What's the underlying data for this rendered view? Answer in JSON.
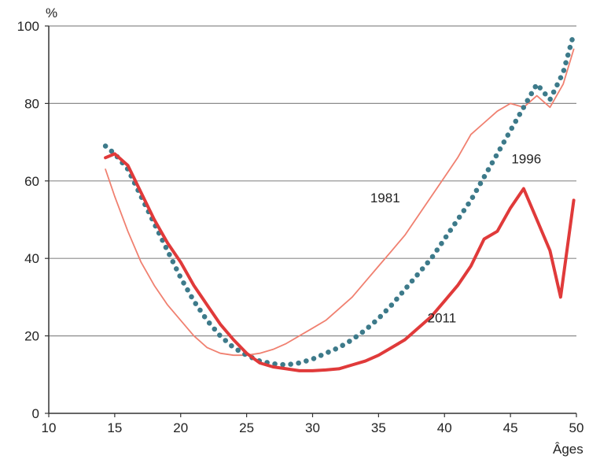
{
  "chart_data": {
    "type": "line",
    "title": "",
    "xlabel": "Âges",
    "ylabel": "%",
    "xlim": [
      10,
      50
    ],
    "ylim": [
      0,
      100
    ],
    "xticks": [
      10,
      15,
      20,
      25,
      30,
      35,
      40,
      45,
      50
    ],
    "yticks": [
      0,
      20,
      40,
      60,
      80,
      100
    ],
    "grid": "horizontal",
    "legend": "none",
    "series": [
      {
        "name": "1981",
        "color": "#f08070",
        "style": "thin",
        "points": [
          [
            14.3,
            63
          ],
          [
            15,
            56
          ],
          [
            16,
            47
          ],
          [
            17,
            39
          ],
          [
            18,
            33
          ],
          [
            19,
            28
          ],
          [
            20,
            24
          ],
          [
            21,
            20
          ],
          [
            22,
            17
          ],
          [
            23,
            15.5
          ],
          [
            24,
            15
          ],
          [
            25,
            15
          ],
          [
            26,
            15.5
          ],
          [
            27,
            16.5
          ],
          [
            28,
            18
          ],
          [
            29,
            20
          ],
          [
            30,
            22
          ],
          [
            31,
            24
          ],
          [
            32,
            27
          ],
          [
            33,
            30
          ],
          [
            34,
            34
          ],
          [
            35,
            38
          ],
          [
            36,
            42
          ],
          [
            37,
            46
          ],
          [
            38,
            51
          ],
          [
            39,
            56
          ],
          [
            40,
            61
          ],
          [
            41,
            66
          ],
          [
            42,
            72
          ],
          [
            43,
            75
          ],
          [
            44,
            78
          ],
          [
            45,
            80
          ],
          [
            46,
            79
          ],
          [
            47,
            82
          ],
          [
            48,
            79
          ],
          [
            49,
            85
          ],
          [
            49.8,
            94
          ]
        ]
      },
      {
        "name": "1996",
        "color": "#3d7a8a",
        "style": "dotted",
        "points": [
          [
            14.3,
            69
          ],
          [
            15,
            67
          ],
          [
            16,
            63
          ],
          [
            17,
            56
          ],
          [
            18,
            49
          ],
          [
            19,
            42
          ],
          [
            20,
            35
          ],
          [
            21,
            29
          ],
          [
            22,
            24
          ],
          [
            23,
            20
          ],
          [
            24,
            17
          ],
          [
            25,
            15
          ],
          [
            26,
            13.5
          ],
          [
            27,
            12.8
          ],
          [
            28,
            12.5
          ],
          [
            29,
            13
          ],
          [
            30,
            14
          ],
          [
            31,
            15.5
          ],
          [
            32,
            17
          ],
          [
            33,
            19
          ],
          [
            34,
            21.5
          ],
          [
            35,
            24.5
          ],
          [
            36,
            28
          ],
          [
            37,
            32
          ],
          [
            38,
            36
          ],
          [
            39,
            40
          ],
          [
            40,
            45
          ],
          [
            41,
            50
          ],
          [
            42,
            55
          ],
          [
            43,
            61
          ],
          [
            44,
            67
          ],
          [
            45,
            73
          ],
          [
            46,
            79
          ],
          [
            47,
            85
          ],
          [
            48,
            81
          ],
          [
            49,
            88
          ],
          [
            49.8,
            98
          ]
        ]
      },
      {
        "name": "2011",
        "color": "#e03a3a",
        "style": "thick",
        "points": [
          [
            14.3,
            66
          ],
          [
            15,
            67
          ],
          [
            16,
            64
          ],
          [
            17,
            57
          ],
          [
            18,
            50
          ],
          [
            19,
            44
          ],
          [
            20,
            39
          ],
          [
            21,
            33
          ],
          [
            22,
            28
          ],
          [
            23,
            23
          ],
          [
            24,
            19
          ],
          [
            25,
            15.5
          ],
          [
            26,
            13
          ],
          [
            27,
            12
          ],
          [
            28,
            11.5
          ],
          [
            29,
            11
          ],
          [
            30,
            11
          ],
          [
            31,
            11.2
          ],
          [
            32,
            11.5
          ],
          [
            33,
            12.5
          ],
          [
            34,
            13.5
          ],
          [
            35,
            15
          ],
          [
            36,
            17
          ],
          [
            37,
            19
          ],
          [
            38,
            22
          ],
          [
            39,
            25
          ],
          [
            40,
            29
          ],
          [
            41,
            33
          ],
          [
            42,
            38
          ],
          [
            43,
            45
          ],
          [
            44,
            47
          ],
          [
            45,
            53
          ],
          [
            46,
            58
          ],
          [
            47,
            50
          ],
          [
            48,
            42
          ],
          [
            48.8,
            30
          ],
          [
            49.8,
            55
          ]
        ]
      }
    ],
    "annotations": [
      {
        "text": "1981",
        "x": 35.5,
        "y": 54.5
      },
      {
        "text": "1996",
        "x": 46.2,
        "y": 64.5
      },
      {
        "text": "2011",
        "x": 39.8,
        "y": 23.5
      }
    ]
  }
}
